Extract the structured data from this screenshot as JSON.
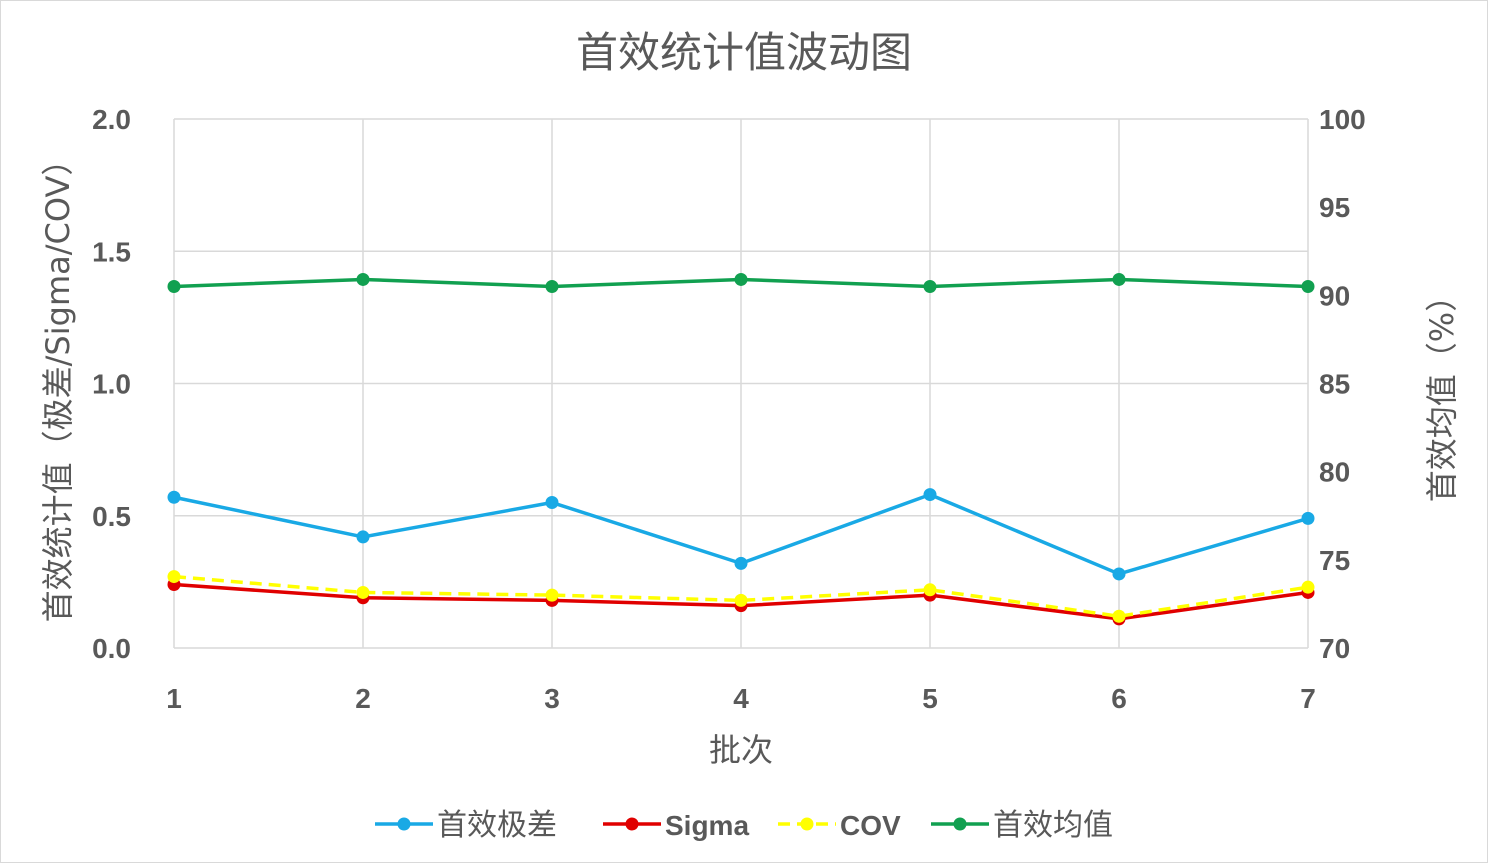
{
  "chart_data": {
    "type": "line",
    "title": "首效统计值波动图",
    "xlabel": "批次",
    "ylabel_left": "首效统计值（极差/Sigma/COV）",
    "ylabel_right": "首效均值（%）",
    "x": [
      1,
      2,
      3,
      4,
      5,
      6,
      7
    ],
    "x_tick_labels": [
      "1",
      "2",
      "3",
      "4",
      "5",
      "6",
      "7"
    ],
    "ylim_left": [
      0,
      2.0
    ],
    "y_ticks_left": [
      "0.0",
      "0.5",
      "1.0",
      "1.5",
      "2.0"
    ],
    "ylim_right": [
      70,
      100
    ],
    "y_ticks_right": [
      "70",
      "75",
      "80",
      "85",
      "90",
      "95",
      "100"
    ],
    "grid": true,
    "legend_position": "bottom",
    "series": [
      {
        "name": "首效极差",
        "axis": "left",
        "color": "#19a9e5",
        "dashed": false,
        "values": [
          0.57,
          0.42,
          0.55,
          0.32,
          0.58,
          0.28,
          0.49
        ]
      },
      {
        "name": "Sigma",
        "axis": "left",
        "color": "#e00000",
        "dashed": false,
        "values": [
          0.24,
          0.19,
          0.18,
          0.16,
          0.2,
          0.11,
          0.21
        ]
      },
      {
        "name": "COV",
        "axis": "left",
        "color": "#ffff00",
        "dashed": true,
        "values": [
          0.27,
          0.21,
          0.2,
          0.18,
          0.22,
          0.12,
          0.23
        ]
      },
      {
        "name": "首效均值",
        "axis": "right",
        "color": "#11a050",
        "dashed": false,
        "values": [
          90.5,
          90.9,
          90.5,
          90.9,
          90.5,
          90.9,
          90.5
        ]
      }
    ]
  }
}
